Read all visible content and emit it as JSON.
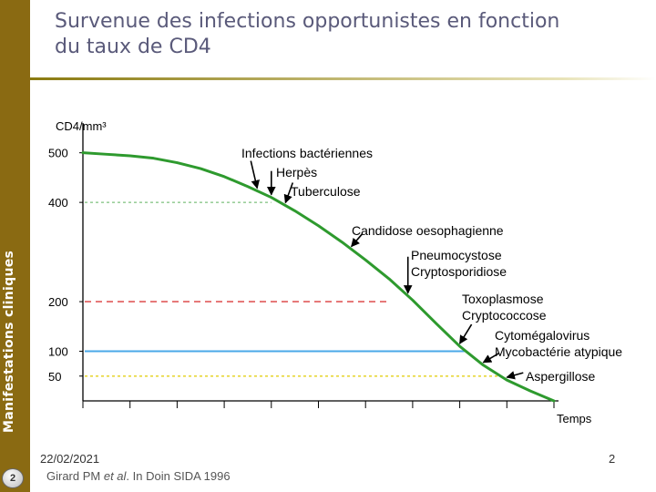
{
  "slide": {
    "sidebar_label": "Manifestations cliniques",
    "slide_badge": "2",
    "title_line1": "Survenue des infections opportunistes en fonction",
    "title_line2": "du taux de CD4",
    "footer_date": "22/02/2021",
    "footer_page": "2",
    "citation_prefix": "Girard PM ",
    "citation_italic": "et al",
    "citation_suffix": ". In Doin SIDA 1996"
  },
  "colors": {
    "sidebar": "#8a6a12",
    "curve": "#2e9a2e",
    "line_400": "#9ccf9c",
    "line_200": "#e05a5a",
    "line_100": "#4aa8e8",
    "line_50": "#e8d83a"
  },
  "chart_data": {
    "type": "line",
    "ylabel": "CD4/mm³",
    "xlabel": "Temps",
    "ylim": [
      0,
      560
    ],
    "xlim": [
      0,
      100
    ],
    "y_ticks": [
      {
        "value": 500,
        "label": "500"
      },
      {
        "value": 400,
        "label": "400"
      },
      {
        "value": 200,
        "label": "200"
      },
      {
        "value": 100,
        "label": "100"
      },
      {
        "value": 50,
        "label": "50"
      }
    ],
    "series": [
      {
        "name": "CD4",
        "x": [
          0,
          5,
          10,
          15,
          20,
          25,
          30,
          35,
          40,
          45,
          50,
          55,
          60,
          65,
          70,
          75,
          80,
          85,
          90,
          95,
          100
        ],
        "y": [
          500,
          497,
          494,
          489,
          480,
          468,
          452,
          432,
          410,
          383,
          353,
          320,
          284,
          246,
          203,
          156,
          110,
          72,
          42,
          20,
          0
        ]
      }
    ],
    "reference_lines": [
      {
        "value": 400,
        "style": "dotted",
        "color_key": "line_400",
        "x_end": 40
      },
      {
        "value": 200,
        "style": "dashed",
        "color_key": "line_200",
        "x_end": 65
      },
      {
        "value": 100,
        "style": "solid",
        "color_key": "line_100",
        "x_end": 81
      },
      {
        "value": 50,
        "style": "dotted",
        "color_key": "line_50",
        "x_end": 88
      }
    ],
    "annotations": [
      {
        "lines": [
          "Infections bactériennes"
        ],
        "arrow_x": 37
      },
      {
        "lines": [
          "Herpès"
        ],
        "arrow_x": 40
      },
      {
        "lines": [
          "Tuberculose"
        ],
        "arrow_x": 43
      },
      {
        "lines": [
          "Candidose oesophagienne"
        ],
        "arrow_x": 57
      },
      {
        "lines": [
          "Pneumocystose",
          "Cryptosporidiose"
        ],
        "arrow_x": 69
      },
      {
        "lines": [
          "Toxoplasmose",
          "Cryptococcose"
        ],
        "arrow_x": 80
      },
      {
        "lines": [
          "Cytomégalovirus",
          "Mycobactérie atypique"
        ],
        "arrow_x": 85
      },
      {
        "lines": [
          "Aspergillose"
        ],
        "arrow_x": 90
      }
    ],
    "x_tick_count": 10
  }
}
